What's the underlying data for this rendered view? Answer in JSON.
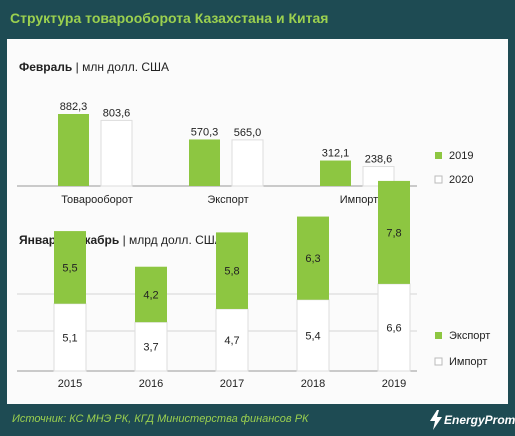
{
  "title": "Структура товарооборота Казахстана и Китая",
  "source": "Источник: КС МНЭ РК, КГД Министерства финансов  РК",
  "logo": "EnergyProm",
  "colors": {
    "green": "#8dc641",
    "white": "#ffffff",
    "frame": "#1e4b53",
    "title": "#9bd04f"
  },
  "chart_data": [
    {
      "type": "bar",
      "title_bold": "Февраль",
      "title_unit": "| млн долл. США",
      "categories": [
        "Товарооборот",
        "Экспорт",
        "Импорт"
      ],
      "series": [
        {
          "name": "2019",
          "values": [
            882.3,
            570.3,
            312.1
          ],
          "labels": [
            "882,3",
            "570,3",
            "312,1"
          ]
        },
        {
          "name": "2020",
          "values": [
            803.6,
            565.0,
            238.6
          ],
          "labels": [
            "803,6",
            "565,0",
            "238,6"
          ]
        }
      ],
      "legend": "right",
      "grid": false
    },
    {
      "type": "bar",
      "stacked": true,
      "title_bold": "Январь–декабрь",
      "title_unit": "| млрд долл. США",
      "categories": [
        "2015",
        "2016",
        "2017",
        "2018",
        "2019"
      ],
      "series": [
        {
          "name": "Экспорт",
          "values": [
            5.5,
            4.2,
            5.8,
            6.3,
            7.8
          ],
          "labels": [
            "5,5",
            "4,2",
            "5,8",
            "6,3",
            "7,8"
          ]
        },
        {
          "name": "Импорт",
          "values": [
            5.1,
            3.7,
            4.7,
            5.4,
            6.6
          ],
          "labels": [
            "5,1",
            "3,7",
            "4,7",
            "5,4",
            "6,6"
          ]
        }
      ],
      "legend": "right",
      "grid": true
    }
  ]
}
